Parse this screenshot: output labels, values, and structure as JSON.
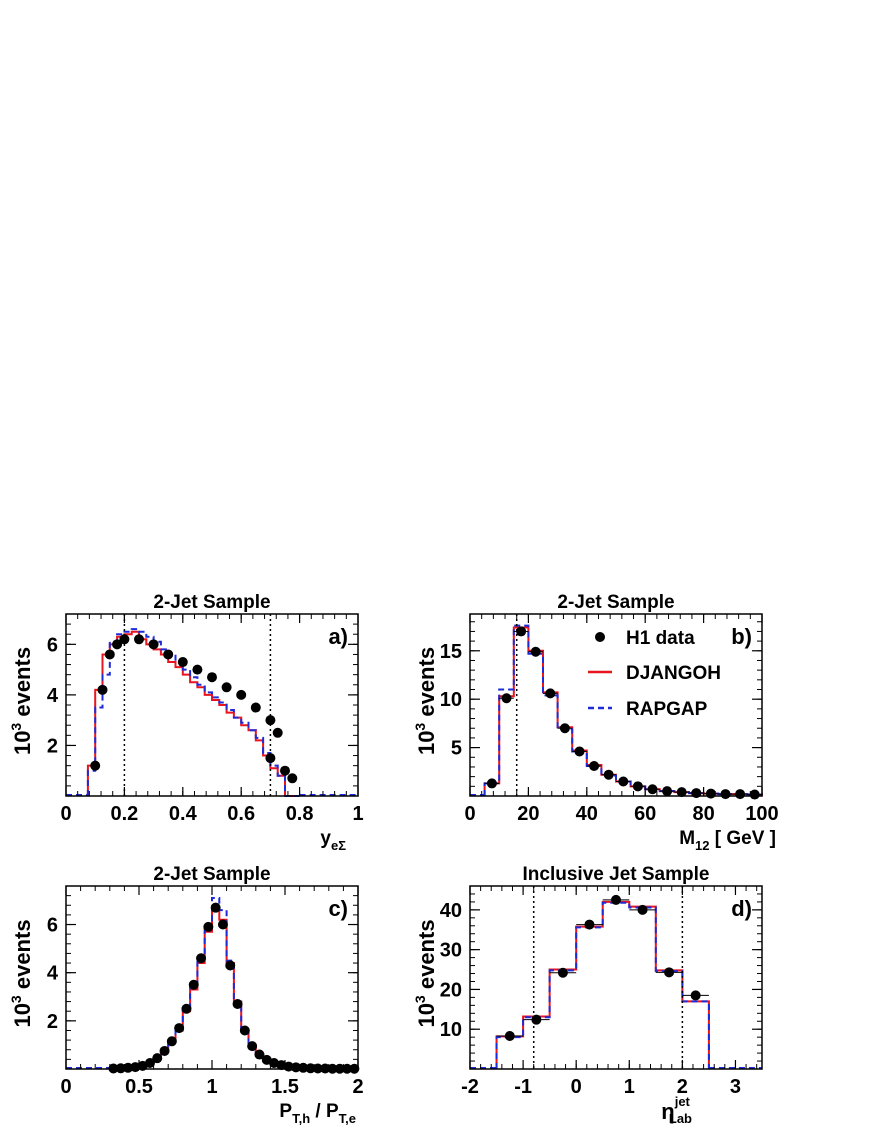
{
  "colors": {
    "data": "#000000",
    "djangoh": "#e8141e",
    "rapgap": "#1e2bd9",
    "cut": "#000000"
  },
  "legend": {
    "entries": [
      "H1 data",
      "DJANGOH",
      "RAPGAP"
    ],
    "placement": "top-right of panel b"
  },
  "chart_data": [
    {
      "panel": "a",
      "type": "histogram",
      "title": "2-Jet Sample",
      "panel_label": "a)",
      "xlabel": "y",
      "xlabel_sub": "eΣ",
      "ylabel_pre": "10",
      "ylabel_sup": "3",
      "ylabel_post": " events",
      "xlim": [
        0,
        1
      ],
      "ylim": [
        0,
        7.2
      ],
      "xticks": [
        "0",
        "0.2",
        "0.4",
        "0.6",
        "0.8",
        "1"
      ],
      "xtick_values": [
        0,
        0.2,
        0.4,
        0.6,
        0.8,
        1
      ],
      "yticks": [
        "2",
        "4",
        "6"
      ],
      "ytick_values": [
        2,
        4,
        6
      ],
      "cut_lines": [
        0.2,
        0.7
      ],
      "bin_edges": [
        0.075,
        0.1,
        0.125,
        0.15,
        0.175,
        0.2,
        0.225,
        0.25,
        0.275,
        0.3,
        0.325,
        0.35,
        0.375,
        0.4,
        0.425,
        0.45,
        0.475,
        0.5,
        0.525,
        0.55,
        0.575,
        0.6,
        0.625,
        0.65,
        0.675,
        0.7,
        0.725,
        0.75,
        0.775,
        0.8
      ],
      "series": [
        {
          "name": "H1 data",
          "kind": "points",
          "values": [
            1.2,
            4.2,
            5.6,
            6.0,
            6.2,
            6.2,
            6.0,
            5.6,
            5.3,
            5.0,
            4.7,
            4.3,
            4.0,
            3.5,
            3.0,
            2.5,
            1.5,
            1.0,
            0.7
          ],
          "x": [
            0.1,
            0.125,
            0.15,
            0.175,
            0.2,
            0.25,
            0.3,
            0.35,
            0.4,
            0.45,
            0.5,
            0.55,
            0.6,
            0.65,
            0.7,
            0.725,
            0.7,
            0.75,
            0.775
          ]
        },
        {
          "name": "DJANGOH",
          "kind": "step",
          "values": [
            1.2,
            4.2,
            5.6,
            6.0,
            6.3,
            6.4,
            6.5,
            6.2,
            6.0,
            5.8,
            5.6,
            5.3,
            5.1,
            4.8,
            4.5,
            4.3,
            4.0,
            3.8,
            3.6,
            3.3,
            3.1,
            2.8,
            2.6,
            2.2,
            1.6,
            1.1,
            0.8,
            0,
            0
          ]
        },
        {
          "name": "RAPGAP",
          "kind": "step",
          "values": [
            1.0,
            3.5,
            4.8,
            6.1,
            6.4,
            6.5,
            6.6,
            6.5,
            6.3,
            6.1,
            5.8,
            5.6,
            5.3,
            5.0,
            4.7,
            4.4,
            4.1,
            3.9,
            3.7,
            3.4,
            3.1,
            2.9,
            2.6,
            2.3,
            1.7,
            1.2,
            0.8,
            0,
            0
          ]
        }
      ]
    },
    {
      "panel": "b",
      "type": "histogram",
      "title": "2-Jet Sample",
      "panel_label": "b)",
      "xlabel": "M",
      "xlabel_sub": "12",
      "xlabel_post": "  [ GeV ]",
      "ylabel_pre": "10",
      "ylabel_sup": "3",
      "ylabel_post": " events",
      "xlim": [
        0,
        100
      ],
      "ylim": [
        0,
        18.8
      ],
      "xticks": [
        "0",
        "20",
        "40",
        "60",
        "80",
        "100"
      ],
      "xtick_values": [
        0,
        20,
        40,
        60,
        80,
        100
      ],
      "yticks": [
        "5",
        "10",
        "15"
      ],
      "ytick_values": [
        5,
        10,
        15
      ],
      "cut_lines": [
        16
      ],
      "bin_edges": [
        5,
        10,
        15,
        20,
        25,
        30,
        35,
        40,
        45,
        50,
        55,
        60,
        65,
        70,
        75,
        80,
        85,
        90,
        95,
        100
      ],
      "series": [
        {
          "name": "H1 data",
          "kind": "points",
          "values": [
            1.3,
            10.1,
            17.0,
            14.9,
            10.6,
            7.0,
            4.6,
            3.1,
            2.2,
            1.5,
            1.0,
            0.7,
            0.5,
            0.4,
            0.3,
            0.25,
            0.2,
            0.2,
            0.15
          ],
          "x": [
            7.5,
            12.5,
            17.5,
            22.5,
            27.5,
            32.5,
            37.5,
            42.5,
            47.5,
            52.5,
            57.5,
            62.5,
            67.5,
            72.5,
            77.5,
            82.5,
            87.5,
            92.5,
            97.5
          ]
        },
        {
          "name": "DJANGOH",
          "kind": "step",
          "values": [
            1.3,
            10.3,
            17.4,
            15.0,
            10.7,
            7.1,
            4.7,
            3.2,
            2.2,
            1.5,
            1.0,
            0.7,
            0.5,
            0.4,
            0.3,
            0.25,
            0.2,
            0.2,
            0.15
          ]
        },
        {
          "name": "RAPGAP",
          "kind": "step",
          "values": [
            1.3,
            11.0,
            17.6,
            14.7,
            10.4,
            6.9,
            4.6,
            3.1,
            2.1,
            1.5,
            1.0,
            0.7,
            0.5,
            0.4,
            0.3,
            0.25,
            0.2,
            0.2,
            0.15
          ]
        }
      ]
    },
    {
      "panel": "c",
      "type": "histogram",
      "title": "2-Jet Sample",
      "panel_label": "c)",
      "xlabel": "P",
      "xlabel_sub": "T,h",
      "xlabel_mid": " / P",
      "xlabel_sub2": "T,e",
      "ylabel_pre": "10",
      "ylabel_sup": "3",
      "ylabel_post": " events",
      "xlim": [
        0,
        2
      ],
      "ylim": [
        0,
        7.6
      ],
      "xticks": [
        "0",
        "0.5",
        "1",
        "1.5",
        "2"
      ],
      "xtick_values": [
        0,
        0.5,
        1,
        1.5,
        2
      ],
      "yticks": [
        "2",
        "4",
        "6"
      ],
      "ytick_values": [
        2,
        4,
        6
      ],
      "cut_lines": [],
      "bin_edges": [
        0.3,
        0.35,
        0.4,
        0.45,
        0.5,
        0.55,
        0.6,
        0.65,
        0.7,
        0.75,
        0.8,
        0.85,
        0.9,
        0.95,
        1.0,
        1.05,
        1.1,
        1.15,
        1.2,
        1.25,
        1.3,
        1.35,
        1.4,
        1.45,
        1.5,
        1.55,
        1.6,
        1.65,
        1.7,
        1.75,
        1.8,
        1.85,
        1.9,
        1.95,
        2.0
      ],
      "series": [
        {
          "name": "H1 data",
          "kind": "points",
          "values": [
            0.02,
            0.03,
            0.05,
            0.08,
            0.13,
            0.25,
            0.45,
            0.75,
            1.15,
            1.7,
            2.5,
            3.5,
            4.6,
            5.9,
            6.7,
            6.0,
            4.3,
            2.7,
            1.6,
            0.95,
            0.6,
            0.38,
            0.25,
            0.16,
            0.1,
            0.07,
            0.05,
            0.03,
            0.02,
            0.02,
            0.01,
            0.01,
            0.01,
            0.01
          ],
          "x": [
            0.325,
            0.375,
            0.425,
            0.475,
            0.525,
            0.575,
            0.625,
            0.675,
            0.725,
            0.775,
            0.825,
            0.875,
            0.925,
            0.975,
            1.025,
            1.075,
            1.125,
            1.175,
            1.225,
            1.275,
            1.325,
            1.375,
            1.425,
            1.475,
            1.525,
            1.575,
            1.625,
            1.675,
            1.725,
            1.775,
            1.825,
            1.875,
            1.925,
            1.975
          ]
        },
        {
          "name": "DJANGOH",
          "kind": "step",
          "values": [
            0.02,
            0.03,
            0.05,
            0.08,
            0.13,
            0.24,
            0.43,
            0.72,
            1.1,
            1.6,
            2.4,
            3.3,
            4.4,
            5.7,
            6.6,
            6.2,
            4.4,
            2.8,
            1.65,
            1.0,
            0.62,
            0.4,
            0.26,
            0.17,
            0.11,
            0.07,
            0.05,
            0.03,
            0.02,
            0.02,
            0.01,
            0.01,
            0.01,
            0.01
          ]
        },
        {
          "name": "RAPGAP",
          "kind": "step",
          "values": [
            0.02,
            0.03,
            0.05,
            0.08,
            0.13,
            0.25,
            0.45,
            0.75,
            1.15,
            1.7,
            2.5,
            3.5,
            4.6,
            6.0,
            7.1,
            6.6,
            4.5,
            2.8,
            1.6,
            0.95,
            0.6,
            0.38,
            0.25,
            0.16,
            0.1,
            0.07,
            0.05,
            0.03,
            0.02,
            0.02,
            0.01,
            0.01,
            0.01,
            0.01
          ]
        }
      ]
    },
    {
      "panel": "d",
      "type": "histogram",
      "title": "Inclusive Jet Sample",
      "panel_label": "d)",
      "xlabel": "η",
      "xlabel_sup": "jet",
      "xlabel_sub": "Lab",
      "ylabel_pre": "10",
      "ylabel_sup": "3",
      "ylabel_post": " events",
      "xlim": [
        -2,
        3.5
      ],
      "ylim": [
        0,
        46
      ],
      "xticks": [
        "-2",
        "-1",
        "0",
        "1",
        "2",
        "3"
      ],
      "xtick_values": [
        -2,
        -1,
        0,
        1,
        2,
        3
      ],
      "yticks": [
        "10",
        "20",
        "30",
        "40"
      ],
      "ytick_values": [
        10,
        20,
        30,
        40
      ],
      "cut_lines": [
        -0.8,
        2.0
      ],
      "bin_edges": [
        -1.5,
        -1.0,
        -0.5,
        0.0,
        0.5,
        1.0,
        1.5,
        2.0,
        2.5
      ],
      "series": [
        {
          "name": "H1 data",
          "kind": "points",
          "values": [
            8.3,
            12.4,
            24.2,
            36.3,
            42.5,
            40.0,
            24.3,
            18.5
          ],
          "x": [
            -1.25,
            -0.75,
            -0.25,
            0.25,
            0.75,
            1.25,
            1.75,
            2.25
          ]
        },
        {
          "name": "DJANGOH",
          "kind": "step",
          "values": [
            8.2,
            13.2,
            25.0,
            35.8,
            42.0,
            40.8,
            24.8,
            17.0
          ]
        },
        {
          "name": "RAPGAP",
          "kind": "step",
          "values": [
            8.0,
            13.0,
            24.8,
            35.6,
            41.8,
            40.6,
            24.6,
            17.0
          ]
        }
      ]
    }
  ]
}
